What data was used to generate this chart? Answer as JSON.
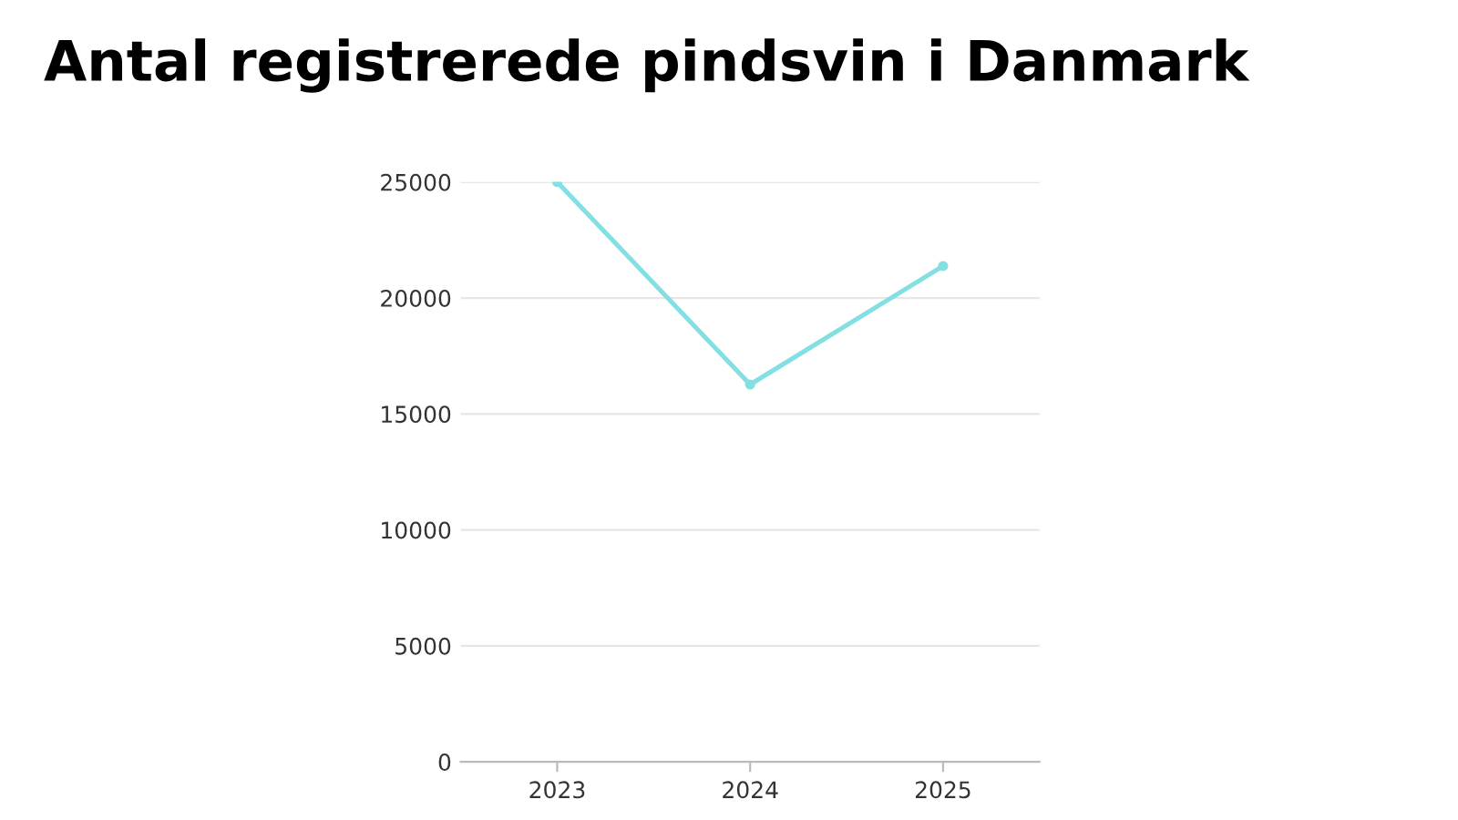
{
  "chart_data": {
    "type": "line",
    "title": "Antal registrerede pindsvin i Danmark",
    "categories": [
      "2023",
      "2024",
      "2025"
    ],
    "series": [
      {
        "color": "#84dfe2",
        "values": [
          25000,
          16270,
          21380
        ]
      }
    ],
    "ylim": [
      0,
      25000
    ],
    "yticks": [
      0,
      5000,
      10000,
      15000,
      20000,
      25000
    ],
    "grid": "y",
    "marker": "circle",
    "line_style": "solid"
  }
}
